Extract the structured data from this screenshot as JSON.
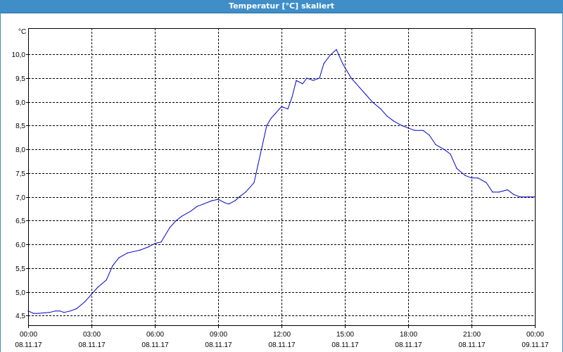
{
  "window": {
    "title": "Temperatur [°C] skaliert"
  },
  "chart_data": {
    "type": "line",
    "title": "Temperatur [°C] skaliert",
    "ylabel": "°C",
    "xlabel": "",
    "ylim": [
      4.3,
      10.55
    ],
    "xlim": [
      0,
      24
    ],
    "grid": true,
    "grid_style": "dashed",
    "line_color": "#0000cc",
    "y_ticks": [
      "4,5",
      "5,0",
      "5,5",
      "6,0",
      "6,5",
      "7,0",
      "7,5",
      "8,0",
      "8,5",
      "9,0",
      "9,5",
      "10,0"
    ],
    "y_tick_values": [
      4.5,
      5.0,
      5.5,
      6.0,
      6.5,
      7.0,
      7.5,
      8.0,
      8.5,
      9.0,
      9.5,
      10.0
    ],
    "x_ticks": [
      {
        "time": "00:00",
        "date": "08.11.17"
      },
      {
        "time": "03:00",
        "date": "08.11.17"
      },
      {
        "time": "06:00",
        "date": "08.11.17"
      },
      {
        "time": "09:00",
        "date": "08.11.17"
      },
      {
        "time": "12:00",
        "date": "08.11.17"
      },
      {
        "time": "15:00",
        "date": "08.11.17"
      },
      {
        "time": "18:00",
        "date": "08.11.17"
      },
      {
        "time": "21:00",
        "date": "08.11.17"
      },
      {
        "time": "00:00",
        "date": "09.11.17"
      }
    ],
    "x_tick_hours": [
      0,
      3,
      6,
      9,
      12,
      15,
      18,
      21,
      24
    ],
    "series": [
      {
        "x": [
          0,
          0.25,
          0.5,
          1.0,
          1.3,
          1.5,
          1.7,
          2.0,
          2.3,
          2.7,
          3.0,
          3.3,
          3.7,
          4.0,
          4.3,
          4.7,
          5.0,
          5.3,
          5.7,
          6.0,
          6.3,
          6.7,
          7.0,
          7.3,
          7.7,
          8.0,
          8.3,
          8.7,
          9.0,
          9.3,
          9.5,
          9.8,
          10.0,
          10.3,
          10.7,
          11.0,
          11.3,
          11.5,
          11.7,
          11.9,
          12.0,
          12.3,
          12.5,
          12.7,
          13.0,
          13.2,
          13.5,
          13.8,
          14.0,
          14.3,
          14.6,
          14.9,
          15.1,
          15.3,
          15.5,
          15.7,
          16.0,
          16.3,
          16.7,
          17.0,
          17.3,
          17.7,
          18.0,
          18.3,
          18.7,
          19.0,
          19.3,
          19.7,
          20.0,
          20.3,
          20.7,
          21.0,
          21.3,
          21.7,
          22.0,
          22.3,
          22.7,
          23.0,
          23.3,
          23.7,
          24.0
        ],
        "y": [
          4.6,
          4.55,
          4.55,
          4.57,
          4.6,
          4.6,
          4.57,
          4.6,
          4.65,
          4.8,
          4.95,
          5.1,
          5.25,
          5.55,
          5.72,
          5.82,
          5.85,
          5.88,
          5.95,
          6.02,
          6.05,
          6.35,
          6.5,
          6.6,
          6.7,
          6.8,
          6.85,
          6.92,
          6.95,
          6.88,
          6.85,
          6.92,
          7.0,
          7.1,
          7.3,
          7.9,
          8.5,
          8.65,
          8.75,
          8.85,
          8.9,
          8.85,
          9.1,
          9.45,
          9.38,
          9.5,
          9.45,
          9.5,
          9.8,
          9.98,
          10.1,
          9.8,
          9.65,
          9.5,
          9.4,
          9.3,
          9.15,
          9.0,
          8.85,
          8.7,
          8.6,
          8.5,
          8.45,
          8.4,
          8.4,
          8.3,
          8.1,
          8.0,
          7.9,
          7.6,
          7.45,
          7.4,
          7.4,
          7.3,
          7.1,
          7.1,
          7.15,
          7.05,
          7.0,
          7.0,
          7.0
        ]
      }
    ]
  }
}
